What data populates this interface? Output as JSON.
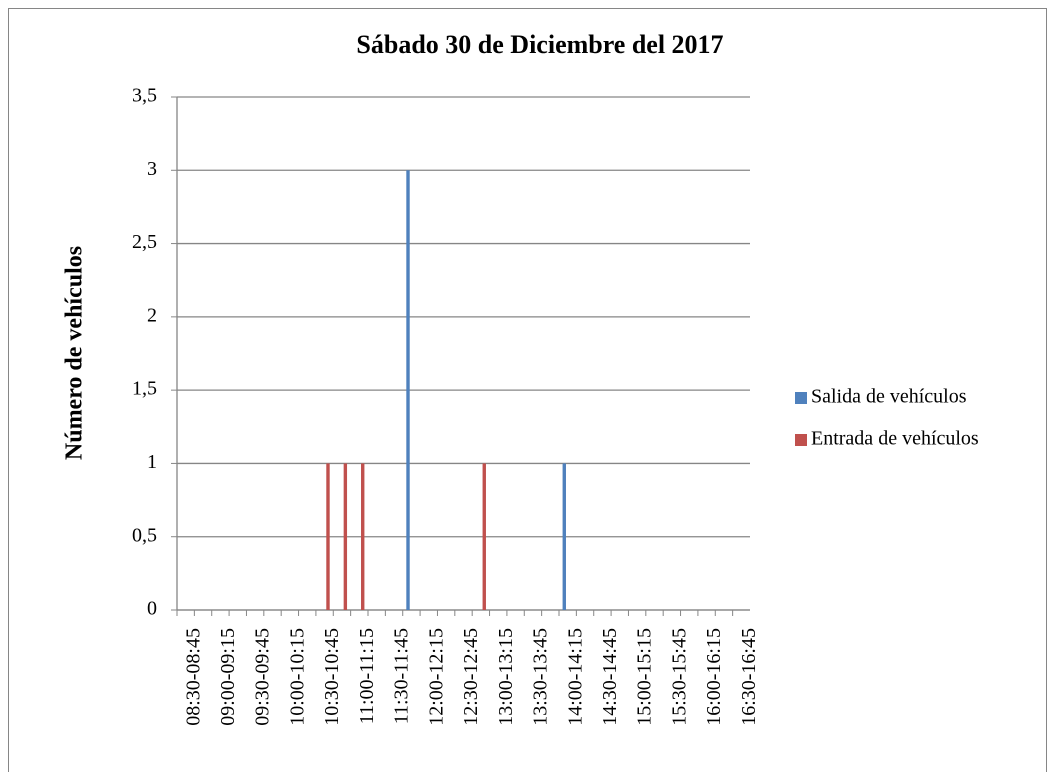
{
  "chart_data": {
    "type": "bar",
    "title": "Sábado 30 de Diciembre del 2017",
    "y_label": "Número de vehículos",
    "categories": [
      "08:30-08:45",
      null,
      "09:00-09:15",
      null,
      "09:30-09:45",
      null,
      "10:00-10:15",
      null,
      "10:30-10:45",
      null,
      "11:00-11:15",
      null,
      "11:30-11:45",
      null,
      "12:00-12:15",
      null,
      "12:30-12:45",
      null,
      "13:00-13:15",
      null,
      "13:30-13:45",
      null,
      "14:00-14:15",
      null,
      "14:30-14:45",
      null,
      "15:00-15:15",
      null,
      "15:30-15:45",
      null,
      "16:00-16:15",
      null,
      "16:30-16:45"
    ],
    "series": [
      {
        "name": "Salida de vehículos",
        "color": "#4f81bd",
        "values": [
          0,
          0,
          0,
          0,
          0,
          0,
          0,
          0,
          0,
          0,
          0,
          0,
          0,
          3,
          0,
          0,
          0,
          0,
          0,
          0,
          0,
          0,
          1,
          0,
          0,
          0,
          0,
          0,
          0,
          0,
          0,
          0,
          0
        ]
      },
      {
        "name": "Entrada de vehículos",
        "color": "#c0504d",
        "values": [
          0,
          0,
          0,
          0,
          0,
          0,
          0,
          0,
          1,
          1,
          1,
          0,
          0,
          0,
          0,
          0,
          0,
          1,
          0,
          0,
          0,
          0,
          0,
          0,
          0,
          0,
          0,
          0,
          0,
          0,
          0,
          0,
          0
        ]
      }
    ],
    "ylim": [
      0,
      3.5
    ],
    "yticks": [
      0,
      {
        "value": 0.5,
        "label": "0,5"
      },
      1,
      {
        "value": 1.5,
        "label": "1,5"
      },
      2,
      {
        "value": 2.5,
        "label": "2,5"
      },
      3,
      {
        "value": 3.5,
        "label": "3,5"
      }
    ],
    "grid": true,
    "legend": "right"
  }
}
